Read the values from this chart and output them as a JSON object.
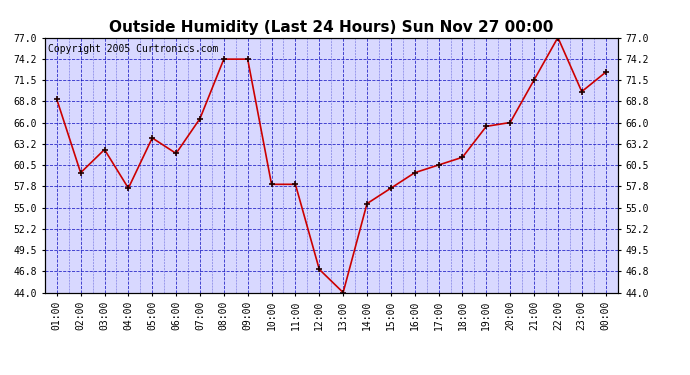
{
  "title": "Outside Humidity (Last 24 Hours) Sun Nov 27 00:00",
  "copyright": "Copyright 2005 Curtronics.com",
  "x_labels": [
    "01:00",
    "02:00",
    "03:00",
    "04:00",
    "05:00",
    "06:00",
    "07:00",
    "08:00",
    "09:00",
    "10:00",
    "11:00",
    "12:00",
    "13:00",
    "14:00",
    "15:00",
    "16:00",
    "17:00",
    "18:00",
    "19:00",
    "20:00",
    "21:00",
    "22:00",
    "23:00",
    "00:00"
  ],
  "humidity_data": [
    69.0,
    59.5,
    62.5,
    57.5,
    64.0,
    62.0,
    66.5,
    74.2,
    74.2,
    58.0,
    58.0,
    47.0,
    44.0,
    55.5,
    57.5,
    59.5,
    60.5,
    61.5,
    65.5,
    66.0,
    71.5,
    77.0,
    70.0,
    72.5
  ],
  "y_ticks": [
    44.0,
    46.8,
    49.5,
    52.2,
    55.0,
    57.8,
    60.5,
    63.2,
    66.0,
    68.8,
    71.5,
    74.2,
    77.0
  ],
  "y_min": 44.0,
  "y_max": 77.0,
  "line_color": "#cc0000",
  "plot_bg_color": "#d8d8ff",
  "outer_bg_color": "#ffffff",
  "grid_color": "#0000bb",
  "title_fontsize": 11,
  "copyright_fontsize": 7
}
